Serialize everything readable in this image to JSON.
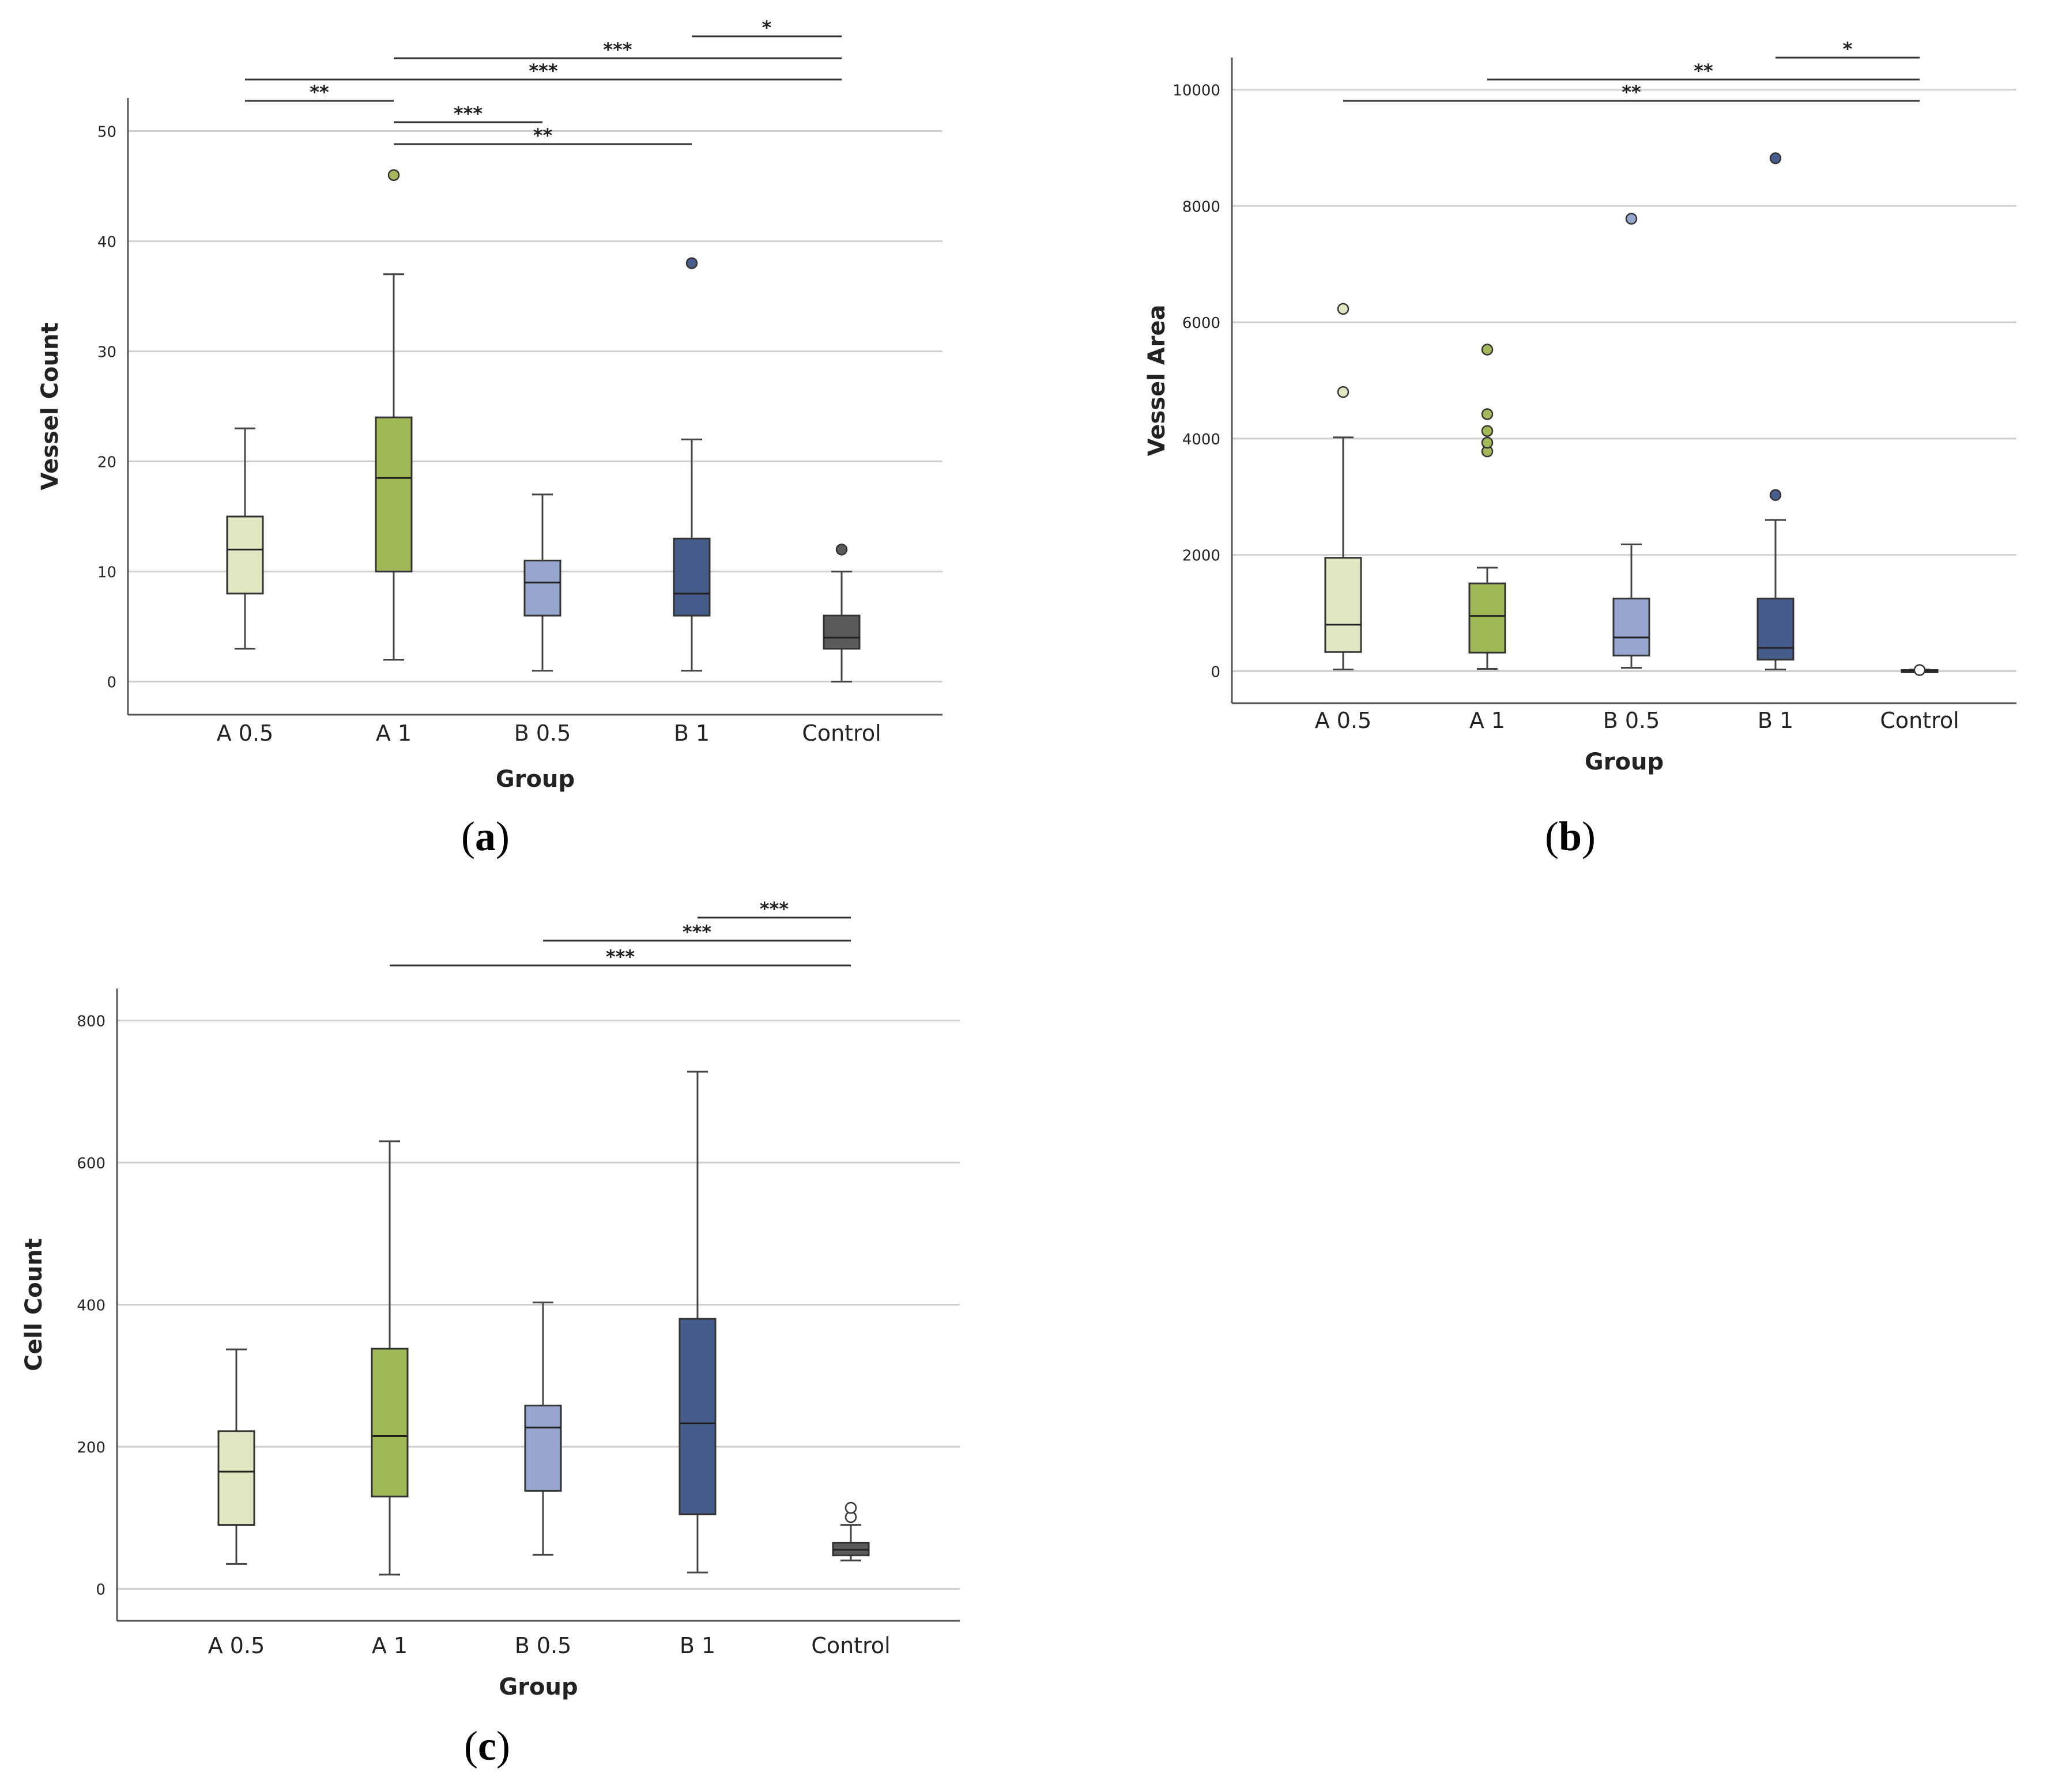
{
  "figure": {
    "colors": {
      "A 0.5": "#dfe7c3",
      "A 1": "#a2b95a",
      "B 0.5": "#97a7cf",
      "B 1": "#465c8b",
      "Control": "#5b5b5b",
      "gridline": "#cfcfcf",
      "axis": "#555555"
    }
  },
  "chart_data": [
    {
      "id": "a",
      "panel_label": "a",
      "type": "boxplot",
      "xlabel": "Group",
      "ylabel": "Vessel Count",
      "categories": [
        "A 0.5",
        "A 1",
        "B 0.5",
        "B 1",
        "Control"
      ],
      "ylim": [
        -3,
        53
      ],
      "yticks": [
        0,
        10,
        20,
        30,
        40,
        50
      ],
      "grid": true,
      "boxes": [
        {
          "group": "A 0.5",
          "min": 3,
          "q1": 8,
          "median": 12,
          "q3": 15,
          "max": 23,
          "outliers": []
        },
        {
          "group": "A 1",
          "min": 2,
          "q1": 10,
          "median": 18.5,
          "q3": 24,
          "max": 37,
          "outliers": [
            46
          ]
        },
        {
          "group": "B 0.5",
          "min": 1,
          "q1": 6,
          "median": 9,
          "q3": 11,
          "max": 17,
          "outliers": []
        },
        {
          "group": "B 1",
          "min": 1,
          "q1": 6,
          "median": 8,
          "q3": 13,
          "max": 22,
          "outliers": [
            38
          ]
        },
        {
          "group": "Control",
          "min": 0,
          "q1": 3,
          "median": 4,
          "q3": 6,
          "max": 10,
          "outliers": [
            12
          ]
        }
      ],
      "significance": [
        {
          "from": "B 1",
          "to": "Control",
          "label": "*"
        },
        {
          "from": "A 1",
          "to": "Control",
          "label": "***"
        },
        {
          "from": "A 0.5",
          "to": "Control",
          "label": "***"
        },
        {
          "from": "A 0.5",
          "to": "A 1",
          "label": "**"
        },
        {
          "from": "A 1",
          "to": "B 0.5",
          "label": "***"
        },
        {
          "from": "A 1",
          "to": "B 1",
          "label": "**"
        }
      ]
    },
    {
      "id": "b",
      "panel_label": "b",
      "type": "boxplot",
      "xlabel": "Group",
      "ylabel": "Vessel Area",
      "categories": [
        "A 0.5",
        "A 1",
        "B 0.5",
        "B 1",
        "Control"
      ],
      "ylim": [
        -550,
        10550
      ],
      "yticks": [
        0,
        2000,
        4000,
        6000,
        8000,
        10000
      ],
      "grid": true,
      "boxes": [
        {
          "group": "A 0.5",
          "min": 30,
          "q1": 330,
          "median": 800,
          "q3": 1950,
          "max": 4020,
          "outliers": [
            4800,
            6230
          ]
        },
        {
          "group": "A 1",
          "min": 40,
          "q1": 320,
          "median": 950,
          "q3": 1510,
          "max": 1780,
          "outliers": [
            3780,
            3930,
            4130,
            4420,
            5530
          ]
        },
        {
          "group": "B 0.5",
          "min": 60,
          "q1": 270,
          "median": 580,
          "q3": 1250,
          "max": 2180,
          "outliers": [
            7780
          ]
        },
        {
          "group": "B 1",
          "min": 30,
          "q1": 200,
          "median": 400,
          "q3": 1250,
          "max": 2600,
          "outliers": [
            3030,
            8820
          ]
        },
        {
          "group": "Control",
          "min": 0,
          "q1": 0,
          "median": 10,
          "q3": 20,
          "max": 30,
          "outliers": [
            20
          ]
        }
      ],
      "significance": [
        {
          "from": "B 1",
          "to": "Control",
          "label": "*"
        },
        {
          "from": "A 1",
          "to": "Control",
          "label": "**"
        },
        {
          "from": "A 0.5",
          "to": "Control",
          "label": "**"
        }
      ]
    },
    {
      "id": "c",
      "panel_label": "c",
      "type": "boxplot",
      "xlabel": "Group",
      "ylabel": "Cell Count",
      "categories": [
        "A 0.5",
        "A 1",
        "B 0.5",
        "B 1",
        "Control"
      ],
      "ylim": [
        -45,
        845
      ],
      "yticks": [
        0,
        200,
        400,
        600,
        800
      ],
      "grid": true,
      "boxes": [
        {
          "group": "A 0.5",
          "min": 35,
          "q1": 90,
          "median": 165,
          "q3": 222,
          "max": 337,
          "outliers": []
        },
        {
          "group": "A 1",
          "min": 20,
          "q1": 130,
          "median": 215,
          "q3": 338,
          "max": 630,
          "outliers": []
        },
        {
          "group": "B 0.5",
          "min": 48,
          "q1": 138,
          "median": 227,
          "q3": 258,
          "max": 403,
          "outliers": []
        },
        {
          "group": "B 1",
          "min": 23,
          "q1": 105,
          "median": 233,
          "q3": 380,
          "max": 728,
          "outliers": []
        },
        {
          "group": "Control",
          "min": 40,
          "q1": 47,
          "median": 55,
          "q3": 65,
          "max": 90,
          "outliers": [
            101,
            114
          ]
        }
      ],
      "significance": [
        {
          "from": "B 1",
          "to": "Control",
          "label": "***"
        },
        {
          "from": "B 0.5",
          "to": "Control",
          "label": "***"
        },
        {
          "from": "A 1",
          "to": "Control",
          "label": "***"
        }
      ]
    }
  ]
}
